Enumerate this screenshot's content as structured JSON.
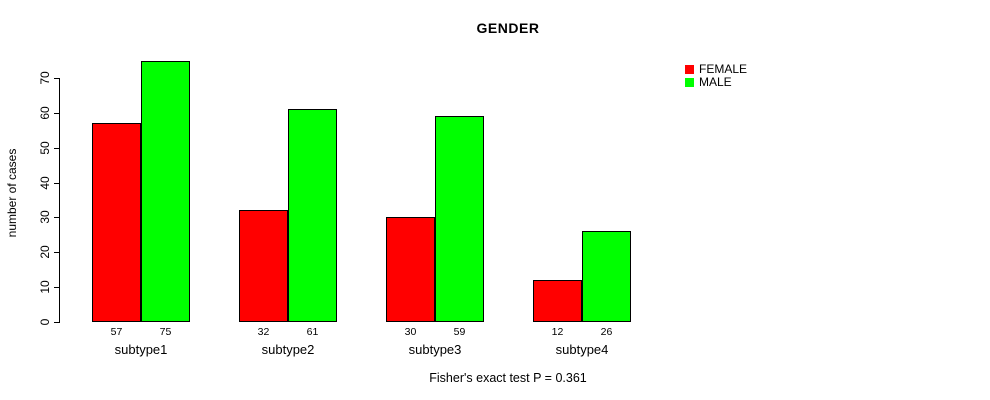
{
  "chart_data": {
    "type": "bar",
    "title": "GENDER",
    "ylabel": "number of cases",
    "xlabel": "",
    "categories": [
      "subtype1",
      "subtype2",
      "subtype3",
      "subtype4"
    ],
    "series": [
      {
        "name": "FEMALE",
        "color": "#ff0000",
        "values": [
          57,
          32,
          30,
          12
        ]
      },
      {
        "name": "MALE",
        "color": "#00ff00",
        "values": [
          75,
          61,
          59,
          26
        ]
      }
    ],
    "bar_value_labels": [
      [
        "57",
        "75"
      ],
      [
        "32",
        "61"
      ],
      [
        "30",
        "59"
      ],
      [
        "12",
        "26"
      ]
    ],
    "ylim": [
      0,
      70
    ],
    "yticks": [
      0,
      10,
      20,
      30,
      40,
      50,
      60,
      70
    ],
    "grid": false,
    "legend_position": "top-right",
    "caption": "Fisher's exact test P = 0.361",
    "bar_border_color": "#000000",
    "axis_color": "#000000"
  }
}
